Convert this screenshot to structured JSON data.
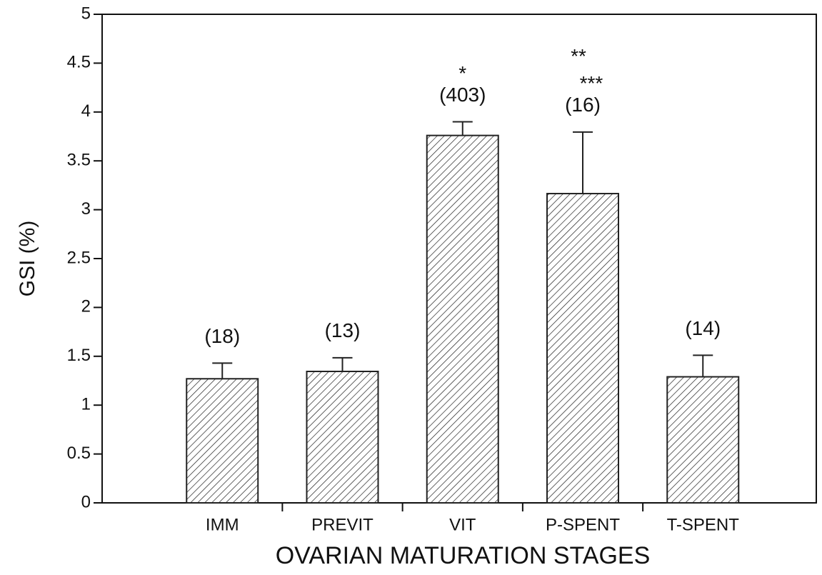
{
  "chart_data": {
    "type": "bar",
    "x_label": "OVARIAN MATURATION STAGES",
    "y_label": "GSI (%)",
    "categories": [
      "IMM",
      "PREVIT",
      "VIT",
      "P-SPENT",
      "T-SPENT"
    ],
    "values": [
      1.27,
      1.345,
      3.76,
      3.165,
      1.29
    ],
    "errors": [
      0.16,
      0.14,
      0.14,
      0.63,
      0.22
    ],
    "n_labels": [
      "(18)",
      "(13)",
      "(403)",
      "(16)",
      "(14)"
    ],
    "significance": [
      [],
      [],
      [
        "*"
      ],
      [
        "**",
        "***"
      ],
      []
    ],
    "color": "#222222",
    "ylim": [
      0,
      5
    ],
    "yticks": [
      0,
      0.5,
      1,
      1.5,
      2,
      2.5,
      3,
      3.5,
      4,
      4.5,
      5
    ],
    "grid": false
  }
}
